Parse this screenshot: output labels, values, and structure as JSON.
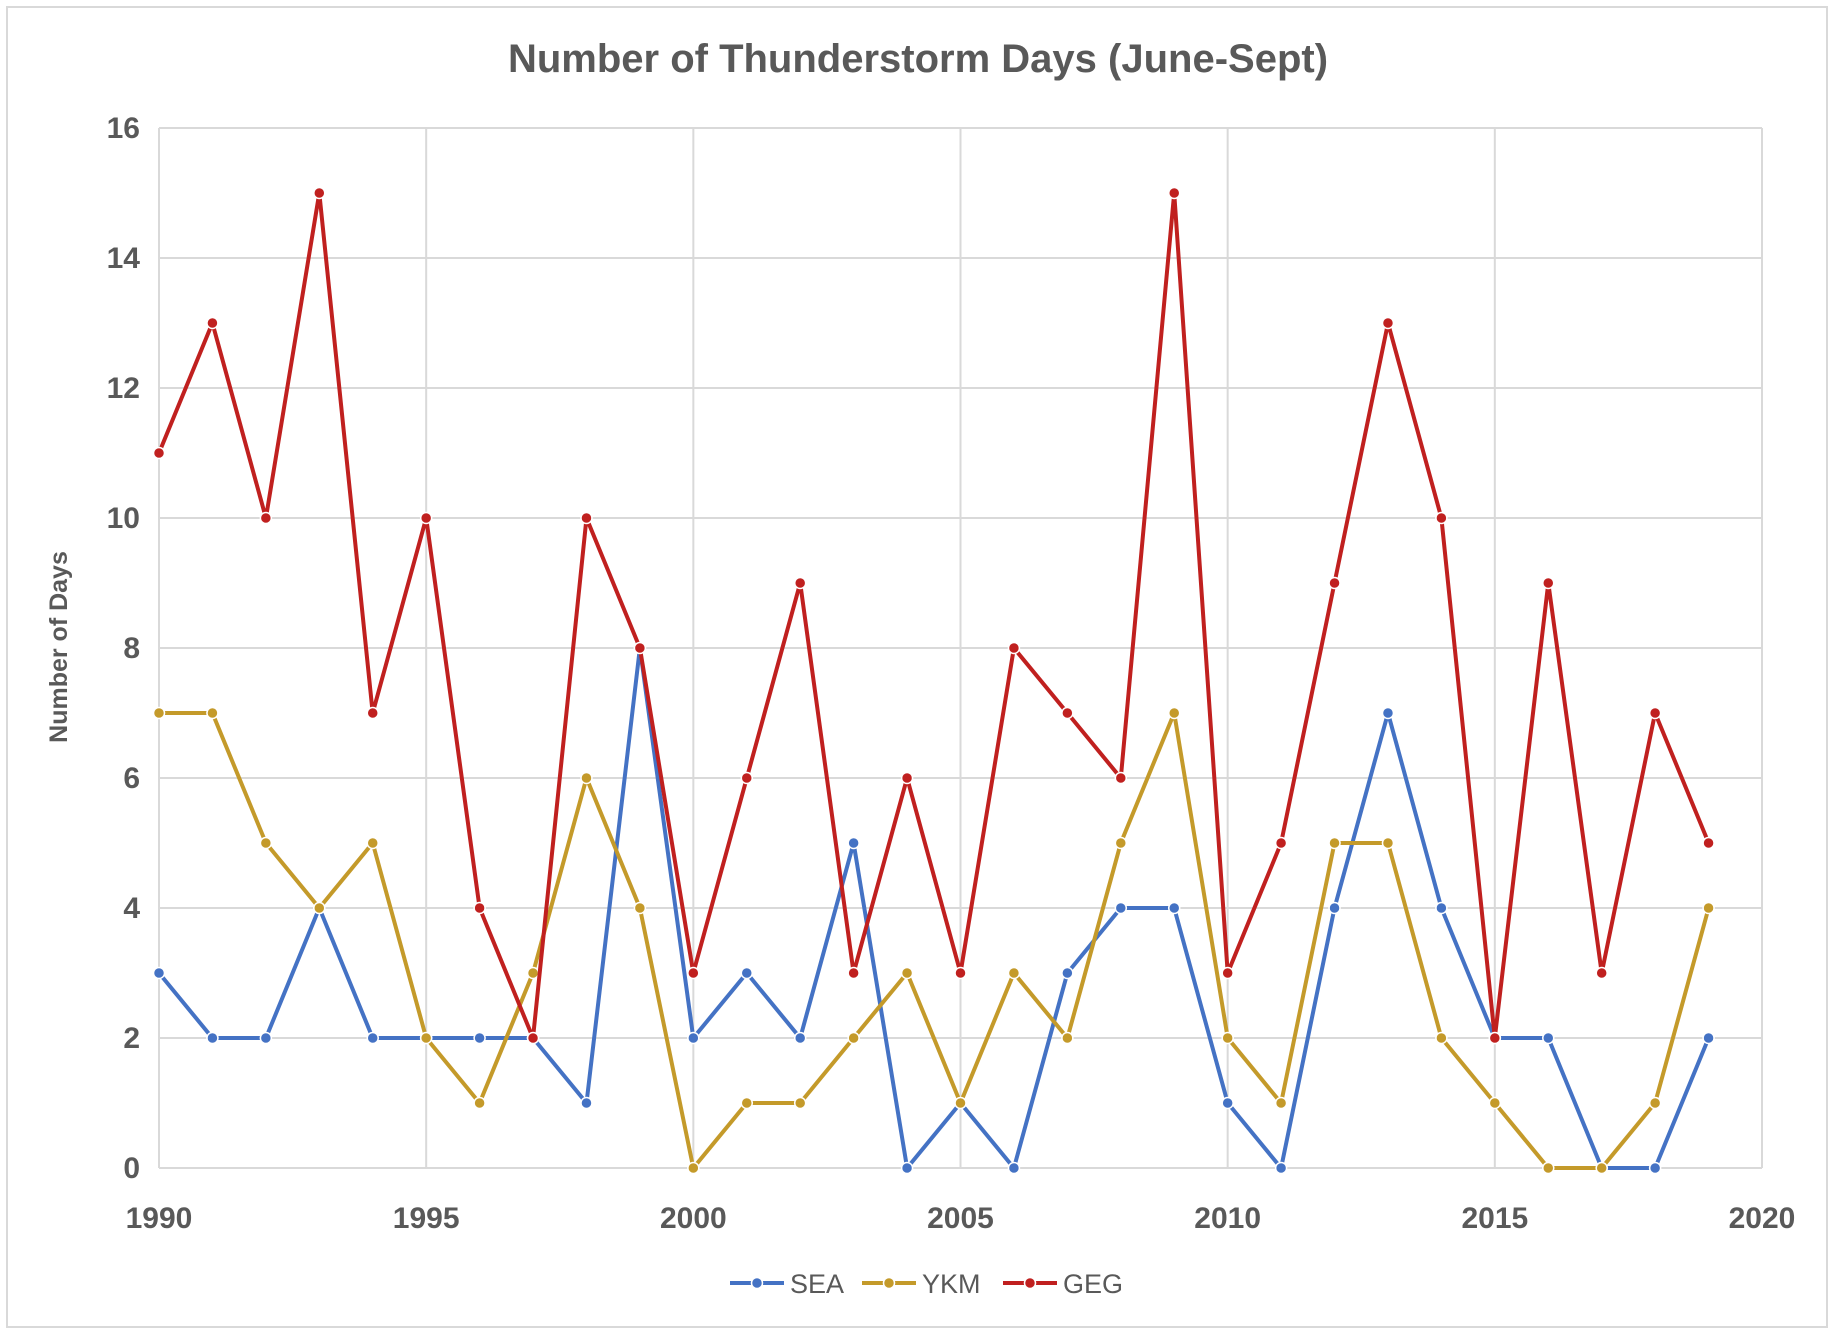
{
  "chart_data": {
    "type": "line",
    "title": "Number of Thunderstorm Days (June-Sept)",
    "xlabel": "",
    "ylabel": "Number of Days",
    "xlim": [
      1990,
      2020
    ],
    "ylim": [
      0,
      16
    ],
    "xticks": [
      1990,
      1995,
      2000,
      2005,
      2010,
      2015,
      2020
    ],
    "yticks": [
      0,
      2,
      4,
      6,
      8,
      10,
      12,
      14,
      16
    ],
    "grid": true,
    "legend_position": "bottom",
    "x": [
      1990,
      1991,
      1992,
      1993,
      1994,
      1995,
      1996,
      1997,
      1998,
      1999,
      2000,
      2001,
      2002,
      2003,
      2004,
      2005,
      2006,
      2007,
      2008,
      2009,
      2010,
      2011,
      2012,
      2013,
      2014,
      2015,
      2016,
      2017,
      2018,
      2019
    ],
    "series": [
      {
        "name": "SEA",
        "color": "#4472c4",
        "values": [
          3,
          2,
          2,
          4,
          2,
          2,
          2,
          2,
          1,
          8,
          2,
          3,
          2,
          5,
          0,
          1,
          0,
          3,
          4,
          4,
          1,
          0,
          4,
          7,
          4,
          2,
          2,
          0,
          0,
          2
        ]
      },
      {
        "name": "YKM",
        "color": "#c49a2a",
        "values": [
          7,
          7,
          5,
          4,
          5,
          2,
          1,
          3,
          6,
          4,
          0,
          1,
          1,
          2,
          3,
          1,
          3,
          2,
          5,
          7,
          2,
          1,
          5,
          5,
          2,
          1,
          0,
          0,
          1,
          4
        ]
      },
      {
        "name": "GEG",
        "color": "#c0201f",
        "values": [
          11,
          13,
          10,
          15,
          7,
          10,
          4,
          2,
          10,
          8,
          3,
          6,
          9,
          3,
          6,
          3,
          8,
          7,
          6,
          15,
          3,
          5,
          9,
          13,
          10,
          2,
          9,
          3,
          7,
          5
        ]
      }
    ]
  }
}
